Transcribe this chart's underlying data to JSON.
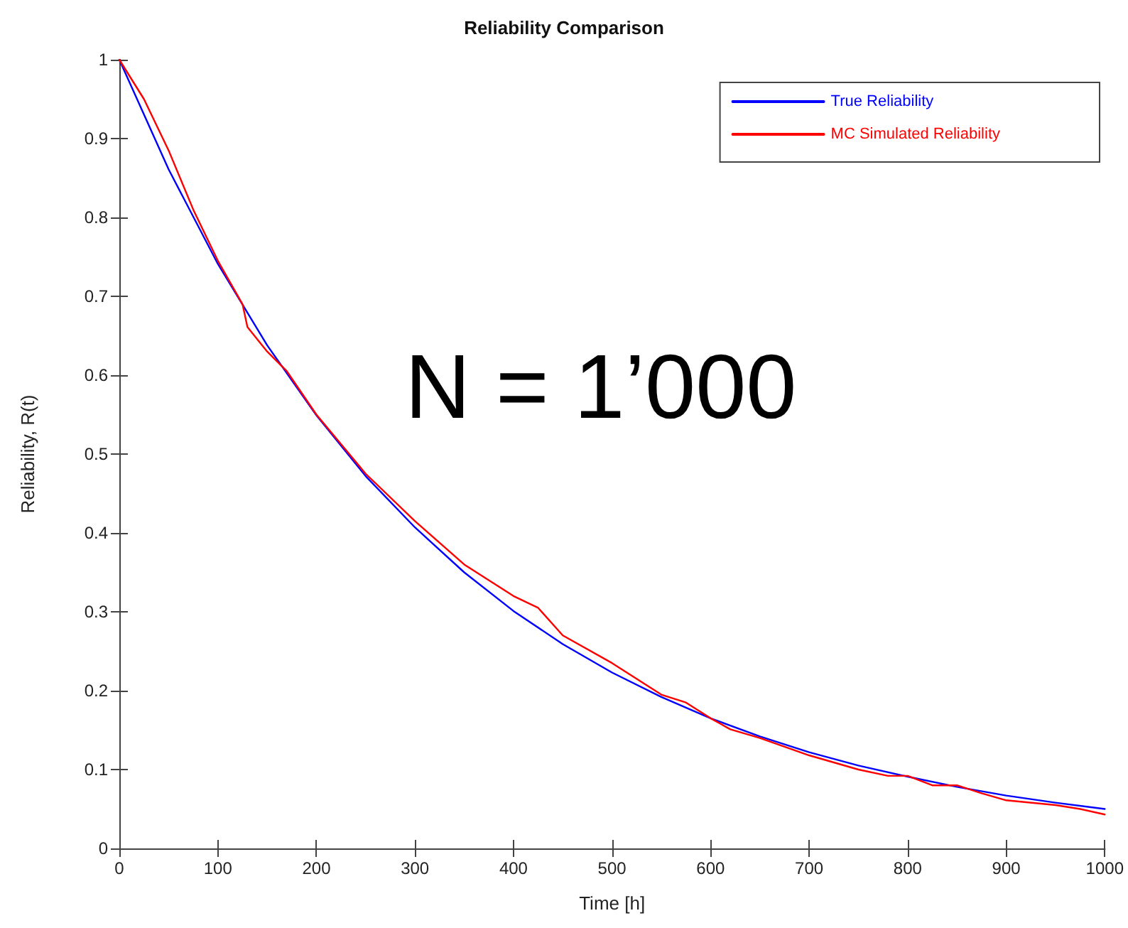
{
  "chart_data": {
    "type": "line",
    "title": "Reliability Comparison",
    "xlabel": "Time [h]",
    "ylabel": "Reliability, R(t)",
    "annotations": [
      "N = 1’000"
    ],
    "xlim": [
      0,
      1000
    ],
    "xticks": [
      0,
      100,
      200,
      300,
      400,
      500,
      600,
      700,
      800,
      900,
      1000
    ],
    "ylim": [
      0,
      1
    ],
    "yticks": [
      0,
      0.1,
      0.2,
      0.3,
      0.4,
      0.5,
      0.6,
      0.7,
      0.8,
      0.9,
      1
    ],
    "grid": false,
    "legend": "top right",
    "marker": "none",
    "line_style": "solid",
    "series": [
      {
        "name": "True Reliability",
        "color": "#0000ff",
        "x": [
          0,
          50,
          100,
          150,
          200,
          250,
          300,
          350,
          400,
          450,
          500,
          550,
          600,
          650,
          700,
          750,
          800,
          850,
          900,
          950,
          1000
        ],
        "values": [
          1,
          0.861,
          0.741,
          0.638,
          0.549,
          0.472,
          0.407,
          0.35,
          0.301,
          0.259,
          0.223,
          0.192,
          0.165,
          0.142,
          0.122,
          0.105,
          0.091,
          0.078,
          0.067,
          0.058,
          0.05
        ]
      },
      {
        "name": "MC Simulated Reliability",
        "color": "#ff0000",
        "x": [
          0,
          25,
          50,
          75,
          100,
          125,
          130,
          150,
          170,
          200,
          250,
          300,
          350,
          400,
          425,
          450,
          500,
          550,
          575,
          600,
          620,
          650,
          700,
          750,
          780,
          800,
          825,
          850,
          875,
          900,
          950,
          975,
          1000
        ],
        "values": [
          1,
          0.95,
          0.885,
          0.81,
          0.745,
          0.69,
          0.661,
          0.63,
          0.605,
          0.55,
          0.475,
          0.415,
          0.36,
          0.32,
          0.305,
          0.27,
          0.235,
          0.195,
          0.185,
          0.165,
          0.151,
          0.14,
          0.118,
          0.1,
          0.092,
          0.092,
          0.08,
          0.08,
          0.07,
          0.061,
          0.055,
          0.05,
          0.043
        ]
      }
    ]
  }
}
